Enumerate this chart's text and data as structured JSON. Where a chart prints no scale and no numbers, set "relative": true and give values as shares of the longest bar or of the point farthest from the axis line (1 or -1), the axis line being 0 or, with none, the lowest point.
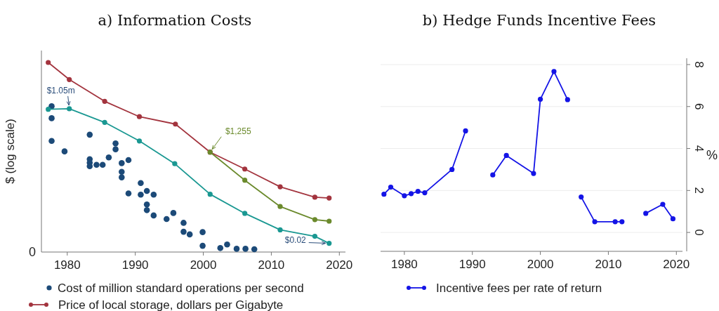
{
  "chart_data": [
    {
      "type": "line",
      "title": "a) Information Costs",
      "ylabel": "$ (log scale)",
      "relative": true,
      "xlim": [
        1976.2,
        2020.9
      ],
      "xticks": [
        1980,
        1990,
        2000,
        2010,
        2020
      ],
      "tick_labels": "x",
      "legend": "bottom",
      "marker": "circle",
      "grid": false,
      "series": [
        {
          "name": "Cost of million standard operations per second",
          "type": "scatter",
          "color": "#1c4a78",
          "x": [
            1977.7,
            1977.7,
            1977.7,
            1979.6,
            1983.3,
            1983.3,
            1983.3,
            1983.3,
            1984.3,
            1985.2,
            1986.1,
            1987.1,
            1987.1,
            1988.0,
            1988.0,
            1988.0,
            1989.0,
            1989.0,
            1990.8,
            1990.8,
            1991.7,
            1991.7,
            1991.7,
            1992.7,
            1992.7,
            1994.6,
            1995.6,
            1997.1,
            1997.1,
            1998.0,
            1999.9,
            1999.9,
            2002.5,
            2003.5,
            2004.9,
            2006.2,
            2007.5
          ],
          "values": [
            0.769,
            0.706,
            0.586,
            0.531,
            0.619,
            0.49,
            0.471,
            0.453,
            0.46,
            0.46,
            0.499,
            0.573,
            0.542,
            0.469,
            0.423,
            0.394,
            0.485,
            0.309,
            0.364,
            0.303,
            0.322,
            0.251,
            0.221,
            0.303,
            0.193,
            0.174,
            0.206,
            0.154,
            0.107,
            0.093,
            0.105,
            0.033,
            0.021,
            0.04,
            0.017,
            0.017,
            0.015
          ]
        },
        {
          "name": "Price of local storage, dollars per Gigabyte",
          "color": "#a3343e",
          "x": [
            1977.2,
            1980.3,
            1985.5,
            1990.6,
            1995.9,
            2001.0,
            2006.1,
            2011.3,
            2016.4,
            2018.5
          ],
          "values": [
            1.0,
            0.91,
            0.795,
            0.714,
            0.675,
            0.527,
            0.438,
            0.344,
            0.289,
            0.285
          ]
        },
        {
          "color": "#1a9892",
          "x": [
            1977.2,
            1980.3,
            1985.5,
            1990.6,
            1995.8,
            2001.0,
            2006.1,
            2011.3,
            2016.4,
            2018.5
          ],
          "values": [
            0.753,
            0.756,
            0.684,
            0.586,
            0.466,
            0.305,
            0.204,
            0.117,
            0.083,
            0.046
          ]
        },
        {
          "color": "#6b8a2c",
          "x": [
            2001.0,
            2006.1,
            2011.3,
            2016.4,
            2018.5
          ],
          "values": [
            0.527,
            0.379,
            0.24,
            0.171,
            0.163
          ]
        }
      ],
      "annotations": [
        {
          "text": "$1.05m",
          "x": 1980.3,
          "y": 0.756
        },
        {
          "text": "$1,255",
          "x": 2001.0,
          "y": 0.527
        },
        {
          "text": "$0.02",
          "x": 2018.5,
          "y": 0.046
        },
        "0"
      ]
    },
    {
      "type": "line",
      "title": "b) Hedge Funds Incentive Fees",
      "ylabel": "%",
      "xlim": [
        1976.5,
        2020.9
      ],
      "xticks": [
        1980,
        1990,
        2000,
        2010,
        2020
      ],
      "ylim": [
        -0.9,
        8.3
      ],
      "yticks": [
        0,
        2,
        4,
        6,
        8
      ],
      "grid": "y",
      "legend": "bottom",
      "marker": "circle",
      "series": [
        {
          "name": "Incentive fees per rate of return",
          "color": "#1414e6",
          "x": [
            1977,
            1978,
            1980,
            1981,
            1982,
            1983,
            1987,
            1989,
            1991,
            1993,
            1995,
            1999,
            2000,
            2002,
            2004,
            2005,
            2006,
            2008,
            2011,
            2012,
            2014,
            2015.5,
            2018,
            2019.5
          ],
          "values": [
            1.82,
            2.16,
            1.75,
            1.85,
            1.96,
            1.89,
            3.0,
            4.84,
            null,
            2.74,
            3.67,
            2.81,
            6.35,
            7.67,
            6.33,
            null,
            1.69,
            0.51,
            0.51,
            0.51,
            null,
            0.91,
            1.34,
            0.65
          ]
        }
      ]
    }
  ]
}
